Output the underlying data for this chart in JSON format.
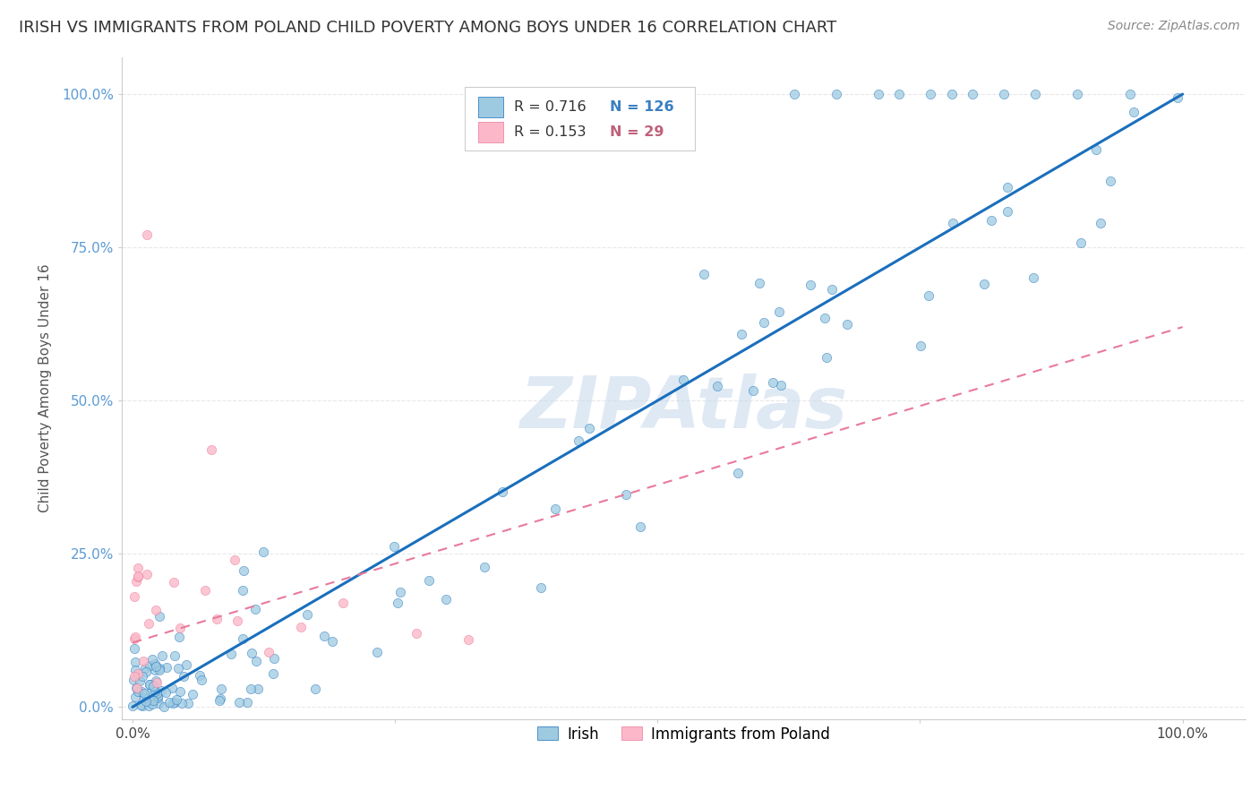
{
  "title": "IRISH VS IMMIGRANTS FROM POLAND CHILD POVERTY AMONG BOYS UNDER 16 CORRELATION CHART",
  "source": "Source: ZipAtlas.com",
  "ylabel": "Child Poverty Among Boys Under 16",
  "watermark": "ZIPAtlas",
  "legend_r1": "R = 0.716",
  "legend_n1": "N = 126",
  "legend_r2": "R = 0.153",
  "legend_n2": "N = 29",
  "label1": "Irish",
  "label2": "Immigrants from Poland",
  "color_blue": "#9ecae1",
  "color_pink": "#fcb8c8",
  "color_blue_line": "#1a6fbd",
  "color_pink_line": "#e87a9a",
  "color_blue_text": "#3a7fc1",
  "color_pink_text": "#c0607a",
  "bg_color": "#ffffff",
  "grid_color": "#e8e8e8",
  "irish_trend": [
    0.0,
    0.0,
    1.0,
    1.0
  ],
  "poland_trend_x": [
    0.0,
    1.0
  ],
  "poland_trend_y": [
    0.105,
    0.62
  ],
  "ylim": [
    -0.02,
    1.06
  ],
  "xlim": [
    -0.01,
    1.06
  ],
  "yticks": [
    0.0,
    0.25,
    0.5,
    0.75,
    1.0
  ],
  "yticklabels": [
    "0.0%",
    "25.0%",
    "50.0%",
    "75.0%",
    "100.0%"
  ],
  "xticks": [
    0.0,
    0.25,
    0.5,
    0.75,
    1.0
  ],
  "xticklabels": [
    "0.0%",
    "",
    "",
    "",
    "100.0%"
  ],
  "title_fontsize": 13,
  "source_fontsize": 10,
  "tick_fontsize": 11,
  "ylabel_fontsize": 11
}
